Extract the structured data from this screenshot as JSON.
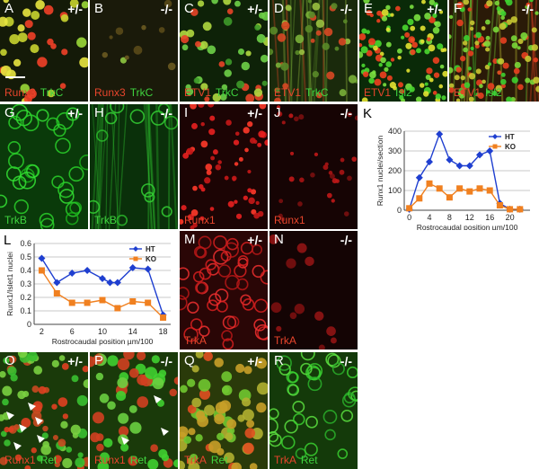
{
  "colors": {
    "ht": "#1f3fd0",
    "ko": "#f08020",
    "stain_red": "#e8452c",
    "stain_green": "#3fd43f"
  },
  "panels": [
    {
      "id": "A",
      "geno": "+/-",
      "labels": [
        {
          "text": "Runx3",
          "color": "red"
        },
        {
          "text": "TrkC",
          "color": "green"
        }
      ],
      "scale_bar": true
    },
    {
      "id": "B",
      "geno": "-/-",
      "labels": [
        {
          "text": "Runx3",
          "color": "red"
        },
        {
          "text": "TrkC",
          "color": "green"
        }
      ]
    },
    {
      "id": "C",
      "geno": "+/-",
      "labels": [
        {
          "text": "ETV1",
          "color": "red"
        },
        {
          "text": "TrkC",
          "color": "green"
        }
      ]
    },
    {
      "id": "D",
      "geno": "-/-",
      "labels": [
        {
          "text": "ETV1",
          "color": "red"
        },
        {
          "text": "TrkC",
          "color": "green"
        }
      ]
    },
    {
      "id": "E",
      "geno": "+/-",
      "labels": [
        {
          "text": "ETV1",
          "color": "red"
        },
        {
          "text": "Isl2",
          "color": "green"
        }
      ]
    },
    {
      "id": "F",
      "geno": "-/-",
      "labels": [
        {
          "text": "ETV1",
          "color": "red"
        },
        {
          "text": "Isl2",
          "color": "green"
        }
      ]
    },
    {
      "id": "G",
      "geno": "+/-",
      "labels": [
        {
          "text": "TrkB",
          "color": "green"
        }
      ]
    },
    {
      "id": "H",
      "geno": "-/-",
      "labels": [
        {
          "text": "TrkB",
          "color": "green"
        }
      ]
    },
    {
      "id": "I",
      "geno": "+/-",
      "labels": [
        {
          "text": "Runx1",
          "color": "red"
        }
      ]
    },
    {
      "id": "J",
      "geno": "-/-",
      "labels": [
        {
          "text": "Runx1",
          "color": "red"
        }
      ]
    },
    {
      "id": "M",
      "geno": "+/-",
      "labels": [
        {
          "text": "TrkA",
          "color": "red"
        }
      ]
    },
    {
      "id": "N",
      "geno": "-/-",
      "labels": [
        {
          "text": "TrkA",
          "color": "red"
        }
      ]
    },
    {
      "id": "O",
      "geno": "+/-",
      "labels": [
        {
          "text": "Runx1",
          "color": "red"
        },
        {
          "text": "Ret",
          "color": "green"
        }
      ],
      "arrows": true
    },
    {
      "id": "P",
      "geno": "-/-",
      "labels": [
        {
          "text": "Runx1",
          "color": "red"
        },
        {
          "text": "Ret",
          "color": "green"
        }
      ],
      "arrows": true
    },
    {
      "id": "Q",
      "geno": "+/-",
      "labels": [
        {
          "text": "TrkA",
          "color": "red"
        },
        {
          "text": "Ret",
          "color": "green"
        }
      ]
    },
    {
      "id": "R",
      "geno": "-/-",
      "labels": [
        {
          "text": "TrkA",
          "color": "red"
        },
        {
          "text": "Ret",
          "color": "green"
        }
      ]
    }
  ],
  "chart_data": [
    {
      "panel": "K",
      "type": "line",
      "title": "",
      "xlabel": "Rostrocaudal position µm/100",
      "ylabel": "Runx1 nuclei/section",
      "xlim": [
        -1,
        24
      ],
      "ylim": [
        0,
        400
      ],
      "xticks": [
        0,
        4,
        8,
        12,
        16,
        20
      ],
      "yticks": [
        0,
        100,
        200,
        300,
        400
      ],
      "grid": true,
      "legend": "top-right",
      "series": [
        {
          "name": "HT",
          "x": [
            0,
            2,
            4,
            6,
            8,
            10,
            12,
            14,
            16,
            18,
            20,
            22
          ],
          "y": [
            5,
            165,
            245,
            385,
            255,
            225,
            225,
            280,
            300,
            35,
            5,
            5
          ]
        },
        {
          "name": "KO",
          "x": [
            0,
            2,
            4,
            6,
            8,
            10,
            12,
            14,
            16,
            18,
            20,
            22
          ],
          "y": [
            10,
            60,
            135,
            110,
            65,
            110,
            95,
            110,
            100,
            25,
            5,
            5
          ]
        }
      ]
    },
    {
      "panel": "L",
      "type": "line",
      "title": "",
      "xlabel": "Rostrocaudal position µm/100",
      "ylabel": "Runx1/Islet1 nuclei",
      "xlim": [
        1,
        19
      ],
      "ylim": [
        0,
        0.6
      ],
      "xticks": [
        2,
        6,
        10,
        14,
        18
      ],
      "yticks": [
        0,
        0.1,
        0.2,
        0.3,
        0.4,
        0.5,
        0.6
      ],
      "grid": true,
      "legend": "top-right",
      "series": [
        {
          "name": "HT",
          "x": [
            2,
            4,
            6,
            8,
            10,
            11,
            12,
            14,
            16,
            18
          ],
          "y": [
            0.49,
            0.31,
            0.38,
            0.4,
            0.34,
            0.31,
            0.31,
            0.42,
            0.41,
            0.07
          ]
        },
        {
          "name": "KO",
          "x": [
            2,
            4,
            6,
            8,
            10,
            12,
            14,
            16,
            18
          ],
          "y": [
            0.4,
            0.23,
            0.16,
            0.16,
            0.18,
            0.12,
            0.17,
            0.16,
            0.05
          ]
        }
      ]
    }
  ]
}
